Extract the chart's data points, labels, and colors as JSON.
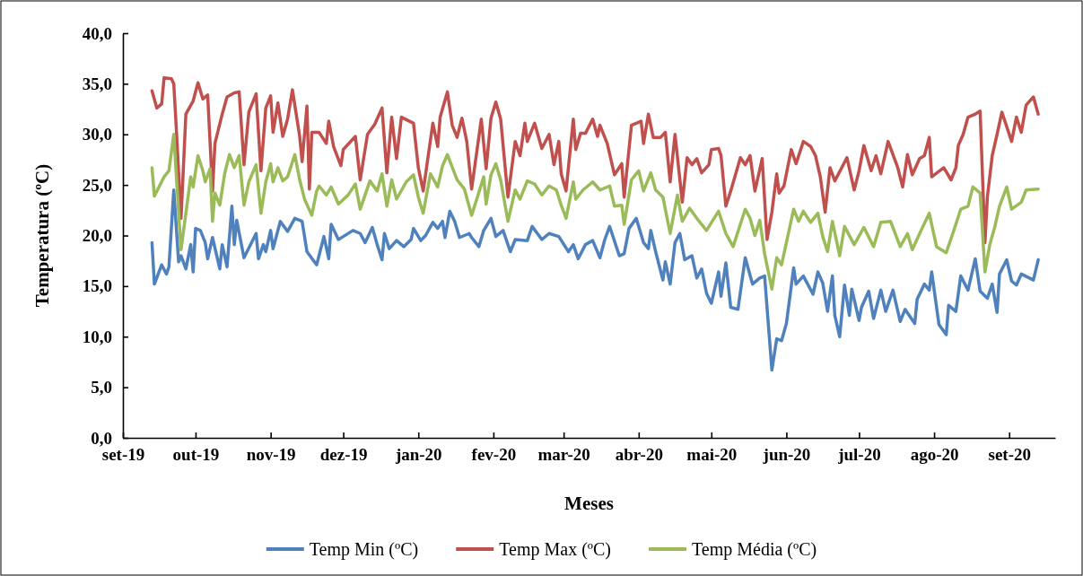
{
  "chart_data": {
    "type": "line",
    "xlabel": "Meses",
    "ylabel": "Temperatura (ºC)",
    "xlim": [
      "2019-09-01",
      "2020-09-20"
    ],
    "ylim": [
      0,
      40
    ],
    "xticks": [
      {
        "value": "2019-09-01",
        "label": "set-19"
      },
      {
        "value": "2019-10-01",
        "label": "out-19"
      },
      {
        "value": "2019-11-01",
        "label": "nov-19"
      },
      {
        "value": "2019-12-01",
        "label": "dez-19"
      },
      {
        "value": "2020-01-01",
        "label": "jan-20"
      },
      {
        "value": "2020-02-01",
        "label": "fev-20"
      },
      {
        "value": "2020-03-01",
        "label": "mar-20"
      },
      {
        "value": "2020-04-01",
        "label": "abr-20"
      },
      {
        "value": "2020-05-01",
        "label": "mai-20"
      },
      {
        "value": "2020-06-01",
        "label": "jun-20"
      },
      {
        "value": "2020-07-01",
        "label": "jul-20"
      },
      {
        "value": "2020-08-01",
        "label": "ago-20"
      },
      {
        "value": "2020-09-01",
        "label": "set-20"
      }
    ],
    "yticks": [
      {
        "value": 0,
        "label": "0,0"
      },
      {
        "value": 5,
        "label": "5,0"
      },
      {
        "value": 10,
        "label": "10,0"
      },
      {
        "value": 15,
        "label": "15,0"
      },
      {
        "value": 20,
        "label": "20,0"
      },
      {
        "value": 25,
        "label": "25,0"
      },
      {
        "value": 30,
        "label": "30,0"
      },
      {
        "value": 35,
        "label": "35,0"
      },
      {
        "value": 40,
        "label": "40,0"
      }
    ],
    "grid": false,
    "legend": "bottom",
    "line_style": "solid",
    "series": [
      {
        "name": "Temp Min (ºC)",
        "color": "#4f81bd",
        "x": [
          "2019-09-13",
          "2019-09-14",
          "2019-09-17",
          "2019-09-19",
          "2019-09-20",
          "2019-09-22",
          "2019-09-24",
          "2019-09-25",
          "2019-09-27",
          "2019-09-29",
          "2019-09-30",
          "2019-10-01",
          "2019-10-03",
          "2019-10-05",
          "2019-10-06",
          "2019-10-08",
          "2019-10-11",
          "2019-10-12",
          "2019-10-14",
          "2019-10-16",
          "2019-10-17",
          "2019-10-18",
          "2019-10-21",
          "2019-10-26",
          "2019-10-27",
          "2019-10-29",
          "2019-10-30",
          "2019-11-01",
          "2019-11-02",
          "2019-11-05",
          "2019-11-08",
          "2019-11-11",
          "2019-11-14",
          "2019-11-16",
          "2019-11-20",
          "2019-11-23",
          "2019-11-25",
          "2019-11-26",
          "2019-11-29",
          "2019-12-01",
          "2019-12-05",
          "2019-12-08",
          "2019-12-10",
          "2019-12-13",
          "2019-12-15",
          "2019-12-17",
          "2019-12-18",
          "2019-12-20",
          "2019-12-23",
          "2019-12-26",
          "2019-12-29",
          "2019-12-30",
          "2020-01-02",
          "2020-01-04",
          "2020-01-07",
          "2020-01-09",
          "2020-01-11",
          "2020-01-12",
          "2020-01-14",
          "2020-01-16",
          "2020-01-18",
          "2020-01-22",
          "2020-01-23",
          "2020-01-26",
          "2020-01-28",
          "2020-01-31",
          "2020-02-02",
          "2020-02-05",
          "2020-02-08",
          "2020-02-10",
          "2020-02-15",
          "2020-02-17",
          "2020-02-21",
          "2020-02-24",
          "2020-02-28",
          "2020-03-03",
          "2020-03-05",
          "2020-03-07",
          "2020-03-10",
          "2020-03-13",
          "2020-03-16",
          "2020-03-18",
          "2020-03-20",
          "2020-03-24",
          "2020-03-26",
          "2020-03-28",
          "2020-03-31",
          "2020-04-03",
          "2020-04-05",
          "2020-04-06",
          "2020-04-08",
          "2020-04-11",
          "2020-04-12",
          "2020-04-14",
          "2020-04-16",
          "2020-04-18",
          "2020-04-20",
          "2020-04-23",
          "2020-04-25",
          "2020-04-27",
          "2020-04-29",
          "2020-05-01",
          "2020-05-04",
          "2020-05-05",
          "2020-05-07",
          "2020-05-09",
          "2020-05-12",
          "2020-05-15",
          "2020-05-18",
          "2020-05-21",
          "2020-05-23",
          "2020-05-26",
          "2020-05-28",
          "2020-05-30",
          "2020-06-01",
          "2020-06-04",
          "2020-06-05",
          "2020-06-08",
          "2020-06-12",
          "2020-06-14",
          "2020-06-16",
          "2020-06-18",
          "2020-06-20",
          "2020-06-21",
          "2020-06-23",
          "2020-06-25",
          "2020-06-27",
          "2020-06-28",
          "2020-07-01",
          "2020-07-02",
          "2020-07-05",
          "2020-07-07",
          "2020-07-10",
          "2020-07-12",
          "2020-07-15",
          "2020-07-18",
          "2020-07-20",
          "2020-07-24",
          "2020-07-25",
          "2020-07-28",
          "2020-07-30",
          "2020-07-31",
          "2020-08-03",
          "2020-08-06",
          "2020-08-07",
          "2020-08-10",
          "2020-08-12",
          "2020-08-15",
          "2020-08-18",
          "2020-08-20",
          "2020-08-23",
          "2020-08-25",
          "2020-08-27",
          "2020-08-28",
          "2020-08-31",
          "2020-09-02",
          "2020-09-04",
          "2020-09-06",
          "2020-09-11",
          "2020-09-13"
        ],
        "values": [
          19.3,
          15.2,
          17.1,
          16.2,
          16.9,
          24.5,
          17.4,
          18.0,
          16.7,
          19.1,
          16.4,
          20.7,
          20.5,
          19.3,
          17.7,
          19.8,
          16.7,
          19.1,
          16.9,
          22.9,
          19.1,
          21.5,
          17.8,
          20.2,
          17.7,
          19.1,
          18.4,
          20.5,
          18.7,
          21.4,
          20.4,
          21.7,
          21.4,
          18.4,
          17.1,
          19.9,
          17.7,
          21.1,
          19.6,
          19.9,
          20.5,
          20.2,
          19.3,
          20.8,
          19.1,
          17.6,
          20.2,
          18.7,
          19.5,
          18.9,
          19.6,
          20.7,
          19.5,
          20.0,
          21.3,
          20.7,
          21.4,
          19.8,
          22.4,
          21.4,
          19.8,
          20.2,
          19.8,
          18.9,
          20.5,
          21.7,
          19.9,
          20.5,
          18.4,
          19.6,
          19.5,
          20.9,
          19.6,
          20.2,
          19.9,
          18.4,
          19.1,
          17.7,
          19.1,
          19.5,
          17.8,
          19.6,
          20.9,
          18.0,
          18.2,
          20.7,
          21.7,
          19.3,
          18.7,
          20.5,
          18.4,
          15.6,
          17.4,
          15.2,
          19.3,
          20.2,
          17.6,
          18.0,
          15.8,
          16.7,
          14.3,
          13.3,
          16.4,
          14.0,
          17.3,
          12.9,
          12.7,
          17.8,
          15.2,
          15.8,
          16.0,
          6.7,
          9.8,
          9.6,
          11.3,
          16.8,
          15.2,
          16.0,
          14.2,
          16.4,
          15.3,
          12.5,
          16.0,
          12.1,
          10.0,
          15.1,
          12.1,
          14.7,
          11.6,
          12.9,
          14.5,
          11.8,
          14.6,
          12.5,
          14.6,
          11.5,
          12.7,
          11.3,
          13.7,
          15.2,
          14.6,
          16.4,
          11.2,
          10.2,
          13.1,
          12.5,
          16.0,
          14.6,
          17.7,
          14.5,
          13.8,
          15.2,
          12.4,
          16.2,
          17.6,
          15.5,
          15.1,
          16.2,
          15.6,
          17.6
        ]
      },
      {
        "name": "Temp Max (ºC)",
        "color": "#c0504d",
        "x": [
          "2019-09-13",
          "2019-09-15",
          "2019-09-17",
          "2019-09-18",
          "2019-09-21",
          "2019-09-22",
          "2019-09-23",
          "2019-09-25",
          "2019-09-27",
          "2019-09-30",
          "2019-10-02",
          "2019-10-04",
          "2019-10-06",
          "2019-10-08",
          "2019-10-09",
          "2019-10-12",
          "2019-10-14",
          "2019-10-17",
          "2019-10-19",
          "2019-10-21",
          "2019-10-23",
          "2019-10-26",
          "2019-10-28",
          "2019-10-30",
          "2019-11-01",
          "2019-11-02",
          "2019-11-04",
          "2019-11-06",
          "2019-11-08",
          "2019-11-10",
          "2019-11-13",
          "2019-11-14",
          "2019-11-16",
          "2019-11-17",
          "2019-11-18",
          "2019-11-21",
          "2019-11-24",
          "2019-11-25",
          "2019-11-27",
          "2019-11-30",
          "2019-12-01",
          "2019-12-06",
          "2019-12-08",
          "2019-12-11",
          "2019-12-14",
          "2019-12-17",
          "2019-12-19",
          "2019-12-21",
          "2019-12-23",
          "2019-12-25",
          "2019-12-30",
          "2020-01-01",
          "2020-01-03",
          "2020-01-07",
          "2020-01-09",
          "2020-01-10",
          "2020-01-13",
          "2020-01-15",
          "2020-01-17",
          "2020-01-19",
          "2020-01-21",
          "2020-01-23",
          "2020-01-27",
          "2020-01-29",
          "2020-01-31",
          "2020-02-02",
          "2020-02-04",
          "2020-02-07",
          "2020-02-10",
          "2020-02-12",
          "2020-02-14",
          "2020-02-15",
          "2020-02-18",
          "2020-02-21",
          "2020-02-24",
          "2020-02-26",
          "2020-02-28",
          "2020-02-29",
          "2020-03-02",
          "2020-03-05",
          "2020-03-06",
          "2020-03-08",
          "2020-03-10",
          "2020-03-13",
          "2020-03-15",
          "2020-03-16",
          "2020-03-19",
          "2020-03-22",
          "2020-03-25",
          "2020-03-26",
          "2020-03-29",
          "2020-04-02",
          "2020-04-03",
          "2020-04-05",
          "2020-04-07",
          "2020-04-10",
          "2020-04-12",
          "2020-04-14",
          "2020-04-16",
          "2020-04-19",
          "2020-04-21",
          "2020-04-23",
          "2020-04-25",
          "2020-04-27",
          "2020-04-30",
          "2020-05-01",
          "2020-05-04",
          "2020-05-05",
          "2020-05-07",
          "2020-05-09",
          "2020-05-13",
          "2020-05-15",
          "2020-05-17",
          "2020-05-19",
          "2020-05-22",
          "2020-05-24",
          "2020-05-26",
          "2020-05-28",
          "2020-05-29",
          "2020-05-31",
          "2020-06-03",
          "2020-06-05",
          "2020-06-08",
          "2020-06-11",
          "2020-06-13",
          "2020-06-15",
          "2020-06-17",
          "2020-06-19",
          "2020-06-21",
          "2020-06-26",
          "2020-06-29",
          "2020-07-01",
          "2020-07-03",
          "2020-07-06",
          "2020-07-08",
          "2020-07-10",
          "2020-07-13",
          "2020-07-17",
          "2020-07-19",
          "2020-07-21",
          "2020-07-23",
          "2020-07-26",
          "2020-07-28",
          "2020-07-30",
          "2020-07-31",
          "2020-08-05",
          "2020-08-08",
          "2020-08-10",
          "2020-08-11",
          "2020-08-13",
          "2020-08-15",
          "2020-08-18",
          "2020-08-20",
          "2020-08-22",
          "2020-08-23",
          "2020-08-25",
          "2020-08-27",
          "2020-08-29",
          "2020-09-02",
          "2020-09-04",
          "2020-09-06",
          "2020-09-08",
          "2020-09-11",
          "2020-09-13"
        ],
        "values": [
          34.3,
          32.6,
          33.0,
          35.6,
          35.5,
          35.0,
          30.8,
          21.7,
          32.0,
          33.3,
          35.1,
          33.5,
          33.9,
          24.4,
          29.1,
          32.0,
          33.7,
          34.1,
          34.2,
          27.0,
          32.2,
          34.0,
          26.4,
          32.6,
          33.8,
          30.2,
          33.1,
          29.8,
          31.5,
          34.4,
          29.8,
          27.3,
          32.8,
          24.6,
          30.2,
          30.2,
          29.1,
          31.3,
          28.8,
          26.9,
          28.5,
          29.8,
          25.5,
          30.0,
          31.0,
          32.6,
          26.2,
          31.7,
          27.6,
          31.7,
          31.1,
          26.7,
          24.4,
          31.1,
          28.8,
          31.7,
          34.2,
          30.9,
          29.7,
          31.6,
          29.3,
          24.6,
          31.5,
          26.6,
          31.6,
          33.2,
          31.5,
          23.8,
          29.3,
          27.9,
          31.1,
          29.3,
          31.1,
          28.6,
          30.0,
          27.0,
          29.3,
          26.1,
          24.4,
          31.5,
          28.5,
          30.1,
          30.1,
          31.5,
          29.8,
          30.9,
          29.1,
          26.0,
          27.1,
          23.8,
          30.9,
          31.3,
          29.1,
          32.0,
          29.7,
          29.7,
          30.2,
          25.3,
          30.0,
          23.3,
          27.7,
          27.0,
          27.6,
          26.2,
          27.0,
          28.5,
          28.6,
          27.9,
          22.9,
          24.4,
          27.7,
          27.0,
          27.9,
          24.4,
          27.6,
          19.6,
          22.3,
          26.1,
          24.2,
          24.9,
          28.5,
          27.1,
          29.3,
          28.8,
          27.9,
          25.8,
          22.3,
          26.7,
          25.4,
          27.7,
          24.5,
          26.4,
          28.9,
          26.4,
          27.9,
          26.1,
          29.3,
          26.7,
          24.8,
          28.0,
          26.0,
          27.6,
          27.9,
          29.7,
          25.8,
          26.7,
          25.5,
          26.7,
          28.9,
          30.0,
          31.7,
          32.0,
          32.3,
          19.3,
          23.8,
          27.9,
          30.0,
          32.2,
          29.3,
          31.7,
          30.2,
          32.9,
          33.7,
          32.0
        ]
      },
      {
        "name": "Temp Média (ºC)",
        "color": "#9bbb59",
        "x": [
          "2019-09-13",
          "2019-09-14",
          "2019-09-18",
          "2019-09-20",
          "2019-09-22",
          "2019-09-23",
          "2019-09-25",
          "2019-09-29",
          "2019-09-30",
          "2019-10-02",
          "2019-10-04",
          "2019-10-05",
          "2019-10-07",
          "2019-10-08",
          "2019-10-09",
          "2019-10-11",
          "2019-10-13",
          "2019-10-15",
          "2019-10-17",
          "2019-10-19",
          "2019-10-21",
          "2019-10-23",
          "2019-10-26",
          "2019-10-28",
          "2019-10-30",
          "2019-11-01",
          "2019-11-02",
          "2019-11-04",
          "2019-11-06",
          "2019-11-08",
          "2019-11-11",
          "2019-11-13",
          "2019-11-15",
          "2019-11-18",
          "2019-11-20",
          "2019-11-21",
          "2019-11-24",
          "2019-11-26",
          "2019-11-29",
          "2019-12-03",
          "2019-12-06",
          "2019-12-08",
          "2019-12-12",
          "2019-12-15",
          "2019-12-17",
          "2019-12-19",
          "2019-12-21",
          "2019-12-23",
          "2019-12-27",
          "2019-12-30",
          "2020-01-01",
          "2020-01-03",
          "2020-01-06",
          "2020-01-09",
          "2020-01-11",
          "2020-01-13",
          "2020-01-17",
          "2020-01-20",
          "2020-01-23",
          "2020-01-25",
          "2020-01-28",
          "2020-01-29",
          "2020-01-31",
          "2020-02-02",
          "2020-02-04",
          "2020-02-07",
          "2020-02-10",
          "2020-02-12",
          "2020-02-15",
          "2020-02-18",
          "2020-02-21",
          "2020-02-24",
          "2020-02-27",
          "2020-02-29",
          "2020-03-02",
          "2020-03-05",
          "2020-03-06",
          "2020-03-09",
          "2020-03-13",
          "2020-03-16",
          "2020-03-20",
          "2020-03-22",
          "2020-03-25",
          "2020-03-26",
          "2020-03-29",
          "2020-04-01",
          "2020-04-03",
          "2020-04-06",
          "2020-04-08",
          "2020-04-11",
          "2020-04-14",
          "2020-04-17",
          "2020-04-19",
          "2020-04-22",
          "2020-04-25",
          "2020-04-29",
          "2020-05-04",
          "2020-05-07",
          "2020-05-10",
          "2020-05-15",
          "2020-05-17",
          "2020-05-19",
          "2020-05-21",
          "2020-05-23",
          "2020-05-26",
          "2020-05-28",
          "2020-05-30",
          "2020-06-01",
          "2020-06-04",
          "2020-06-06",
          "2020-06-08",
          "2020-06-11",
          "2020-06-14",
          "2020-06-16",
          "2020-06-18",
          "2020-06-20",
          "2020-06-23",
          "2020-06-25",
          "2020-06-29",
          "2020-07-03",
          "2020-07-07",
          "2020-07-10",
          "2020-07-14",
          "2020-07-18",
          "2020-07-21",
          "2020-07-23",
          "2020-07-27",
          "2020-07-30",
          "2020-08-02",
          "2020-08-06",
          "2020-08-09",
          "2020-08-12",
          "2020-08-15",
          "2020-08-17",
          "2020-08-20",
          "2020-08-22",
          "2020-08-24",
          "2020-08-26",
          "2020-08-28",
          "2020-08-31",
          "2020-09-02",
          "2020-09-06",
          "2020-09-08",
          "2020-09-13"
        ],
        "values": [
          26.7,
          23.9,
          25.8,
          26.4,
          30.0,
          26.1,
          18.6,
          25.8,
          24.8,
          27.9,
          26.4,
          25.3,
          26.6,
          21.4,
          24.2,
          23.0,
          26.1,
          28.0,
          26.7,
          27.9,
          23.0,
          25.3,
          27.0,
          22.2,
          25.3,
          27.1,
          25.3,
          26.7,
          25.4,
          25.8,
          28.0,
          25.5,
          23.6,
          22.0,
          24.4,
          24.9,
          24.0,
          24.8,
          23.1,
          24.0,
          25.1,
          22.6,
          25.4,
          24.4,
          26.1,
          22.9,
          25.5,
          23.6,
          25.3,
          26.0,
          23.8,
          22.2,
          26.1,
          24.8,
          26.9,
          28.0,
          25.5,
          24.6,
          22.0,
          23.5,
          25.8,
          23.1,
          26.0,
          27.1,
          25.5,
          21.4,
          24.5,
          23.6,
          25.4,
          25.1,
          24.0,
          24.9,
          24.5,
          23.0,
          21.7,
          25.3,
          23.6,
          24.5,
          25.3,
          24.5,
          24.9,
          22.9,
          23.0,
          21.1,
          25.5,
          26.4,
          24.4,
          26.2,
          24.5,
          23.8,
          20.2,
          24.0,
          21.4,
          22.7,
          21.7,
          20.5,
          22.4,
          20.2,
          18.9,
          22.6,
          21.7,
          20.0,
          21.5,
          18.2,
          14.7,
          17.8,
          17.1,
          19.3,
          22.6,
          21.4,
          22.4,
          21.3,
          22.2,
          19.9,
          18.4,
          21.4,
          18.0,
          20.9,
          19.1,
          20.8,
          18.9,
          21.3,
          21.4,
          18.9,
          20.2,
          18.6,
          20.7,
          22.2,
          18.9,
          18.3,
          20.4,
          22.6,
          22.9,
          24.8,
          24.2,
          16.4,
          19.1,
          20.8,
          22.9,
          24.8,
          22.6,
          23.3,
          24.5,
          24.6
        ]
      }
    ]
  }
}
